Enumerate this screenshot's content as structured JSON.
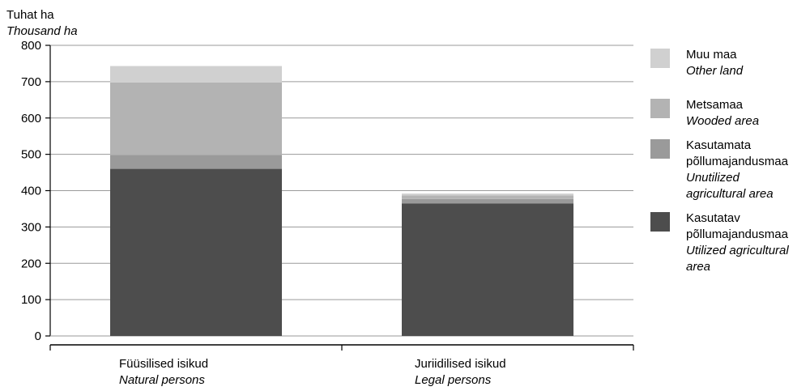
{
  "chart_data": {
    "type": "bar",
    "stacked": true,
    "ylabel": "Tuhat ha",
    "ylabel_en": "Thousand ha",
    "ylim": [
      0,
      800
    ],
    "yticks": [
      0,
      100,
      200,
      300,
      400,
      500,
      600,
      700,
      800
    ],
    "grid": true,
    "legend_position": "right",
    "categories": [
      {
        "label": "Füüsilised isikud",
        "label_en": "Natural persons"
      },
      {
        "label": "Juriidilised isikud",
        "label_en": "Legal persons"
      }
    ],
    "series": [
      {
        "name": "Kasutatav põllumajandusmaa",
        "name_en": "Utilized agricultural area",
        "color": "#4d4d4d",
        "values": [
          460,
          365
        ]
      },
      {
        "name": "Kasutamata põllumajandusmaa",
        "name_en": "Unutilized agricultural area",
        "color": "#9a9a9a",
        "values": [
          38,
          12
        ]
      },
      {
        "name": "Metsamaa",
        "name_en": "Wooded area",
        "color": "#b3b3b3",
        "values": [
          200,
          10
        ]
      },
      {
        "name": "Muu maa",
        "name_en": "Other land",
        "color": "#d0d0d0",
        "values": [
          45,
          5
        ]
      }
    ]
  },
  "legend_items": [
    {
      "lines": [
        "Muu maa"
      ],
      "lines_en": [
        "Other land"
      ],
      "color": "#d0d0d0"
    },
    {
      "lines": [
        "Metsamaa"
      ],
      "lines_en": [
        "Wooded area"
      ],
      "color": "#b3b3b3"
    },
    {
      "lines": [
        "Kasutamata",
        "põllumajandusmaa"
      ],
      "lines_en": [
        "Unutilized",
        "agricultural area"
      ],
      "color": "#9a9a9a"
    },
    {
      "lines": [
        "Kasutatav",
        "põllumajandusmaa"
      ],
      "lines_en": [
        "Utilized agricultural",
        "area"
      ],
      "color": "#4d4d4d"
    }
  ]
}
